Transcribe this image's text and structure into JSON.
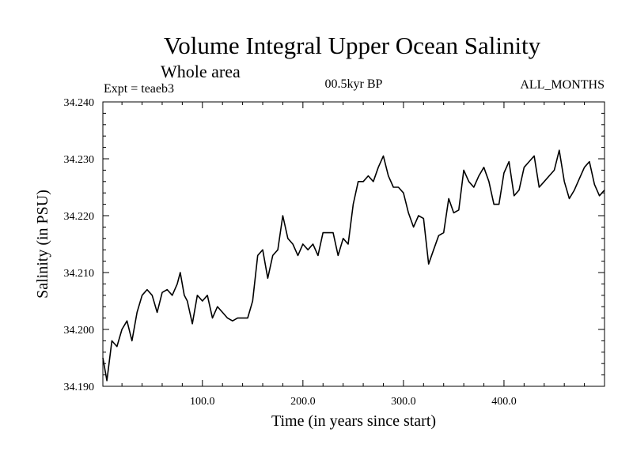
{
  "chart_data": {
    "type": "line",
    "title": "Volume Integral Upper Ocean Salinity",
    "subtitle": "Whole area",
    "expt_label": "Expt = teaeb3",
    "period_label": "00.5kyr BP",
    "months_label": "ALL_MONTHS",
    "xlabel": "Time (in years since start)",
    "ylabel": "Salinity (in PSU)",
    "xlim": [
      1,
      500
    ],
    "ylim": [
      34.19,
      34.24
    ],
    "x_ticks": [
      100,
      200,
      300,
      400
    ],
    "x_tick_labels": [
      "100.0",
      "200.0",
      "300.0",
      "400.0"
    ],
    "y_ticks": [
      34.19,
      34.2,
      34.21,
      34.22,
      34.23,
      34.24
    ],
    "y_tick_labels": [
      "34.190",
      "34.200",
      "34.210",
      "34.220",
      "34.230",
      "34.240"
    ],
    "series": [
      {
        "name": "salinity",
        "x": [
          1,
          5,
          10,
          15,
          20,
          25,
          30,
          35,
          40,
          45,
          50,
          55,
          60,
          65,
          70,
          75,
          78,
          82,
          85,
          90,
          95,
          100,
          105,
          110,
          115,
          120,
          125,
          130,
          135,
          140,
          145,
          150,
          155,
          160,
          165,
          170,
          175,
          180,
          185,
          190,
          195,
          200,
          205,
          210,
          215,
          220,
          225,
          230,
          235,
          240,
          245,
          250,
          255,
          260,
          265,
          270,
          275,
          280,
          285,
          290,
          295,
          300,
          305,
          310,
          315,
          320,
          325,
          330,
          335,
          340,
          345,
          350,
          355,
          360,
          365,
          370,
          375,
          380,
          385,
          390,
          395,
          400,
          405,
          410,
          415,
          420,
          425,
          430,
          435,
          440,
          445,
          450,
          455,
          460,
          465,
          470,
          475,
          480,
          485,
          490,
          495,
          500
        ],
        "values": [
          34.195,
          34.191,
          34.198,
          34.197,
          34.2,
          34.2015,
          34.198,
          34.203,
          34.206,
          34.207,
          34.206,
          34.203,
          34.2065,
          34.207,
          34.206,
          34.208,
          34.21,
          34.206,
          34.205,
          34.201,
          34.206,
          34.205,
          34.206,
          34.202,
          34.204,
          34.203,
          34.202,
          34.2015,
          34.202,
          34.202,
          34.202,
          34.205,
          34.213,
          34.214,
          34.209,
          34.213,
          34.214,
          34.22,
          34.216,
          34.215,
          34.213,
          34.215,
          34.214,
          34.215,
          34.213,
          34.217,
          34.217,
          34.217,
          34.213,
          34.216,
          34.215,
          34.222,
          34.226,
          34.226,
          34.227,
          34.226,
          34.2285,
          34.2305,
          34.227,
          34.225,
          34.225,
          34.224,
          34.2205,
          34.218,
          34.22,
          34.2195,
          34.2115,
          34.214,
          34.2165,
          34.217,
          34.223,
          34.2205,
          34.221,
          34.228,
          34.226,
          34.225,
          34.227,
          34.2285,
          34.226,
          34.222,
          34.222,
          34.2275,
          34.2295,
          34.2235,
          34.2245,
          34.2285,
          34.2295,
          34.2305,
          34.225,
          34.226,
          34.227,
          34.228,
          34.2315,
          34.226,
          34.223,
          34.2245,
          34.2265,
          34.2285,
          34.2295,
          34.2255,
          34.2235,
          34.2245
        ]
      }
    ]
  }
}
